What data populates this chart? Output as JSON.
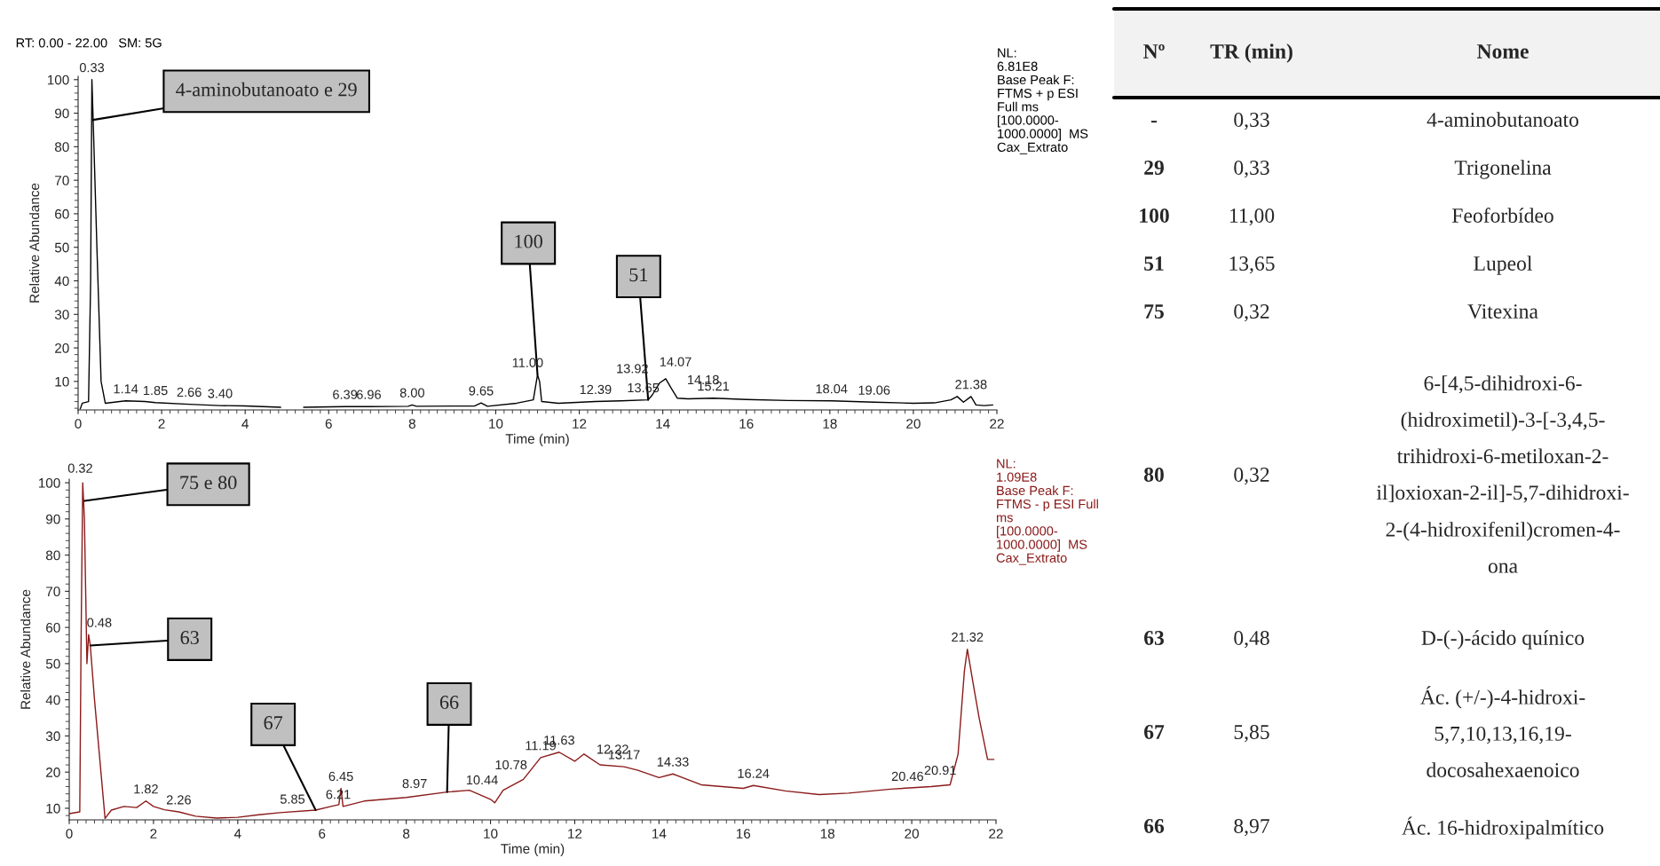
{
  "chart_data": [
    {
      "type": "line",
      "xlabel": "Time (min)",
      "ylabel": "Relative Abundance",
      "xlim": [
        0,
        22
      ],
      "ylim": [
        1.5,
        101
      ],
      "xticks": [
        0,
        2,
        4,
        6,
        8,
        10,
        12,
        14,
        16,
        18,
        20,
        22
      ],
      "yticks": [
        10,
        20,
        30,
        40,
        50,
        60,
        70,
        80,
        90,
        100
      ],
      "series": [
        {
          "color": "#000000",
          "x": [
            0.05,
            0.1,
            0.25,
            0.3,
            0.33,
            0.36,
            0.45,
            0.55,
            0.65,
            1.0,
            1.14,
            1.6,
            1.85,
            2.66,
            3.4,
            4.0,
            4.85,
            5.1,
            5.4,
            6.39,
            6.96,
            7.9,
            8.0,
            8.1,
            9.5,
            9.65,
            9.8,
            10.5,
            10.9,
            11.0,
            11.05,
            11.1,
            11.5,
            12.39,
            13.0,
            13.65,
            13.75,
            13.92,
            14.07,
            14.2,
            14.35,
            14.6,
            15.21,
            16.0,
            17.0,
            18.04,
            19.06,
            20.0,
            20.5,
            20.9,
            21.05,
            21.2,
            21.38,
            21.5,
            21.7,
            21.9
          ],
          "values": [
            1.8,
            3.5,
            4,
            40,
            100,
            88,
            50,
            10,
            3.5,
            4,
            4.2,
            4,
            3.7,
            3.2,
            2.8,
            2.7,
            2.3,
            null,
            2.3,
            2.5,
            2.5,
            2.6,
            3,
            2.6,
            2.7,
            3.6,
            2.6,
            3.5,
            4.5,
            12,
            10,
            4,
            3.5,
            4,
            4.2,
            4.5,
            6,
            9.5,
            10.8,
            8,
            5,
            4.8,
            5,
            4.6,
            4.3,
            4.2,
            3.8,
            3.5,
            3.6,
            4.5,
            5.5,
            3.8,
            5.5,
            3,
            2.8,
            3
          ]
        }
      ],
      "annotations": [
        "RT: 0.00 - 22.00   SM: 5G",
        "NL:\n6.81E8\nBase Peak F:\nFTMS + p ESI\nFull ms\n[100.0000-\n1000.0000]  MS\nCax_Extrato",
        {
          "text": "4-aminobutanoato e 29",
          "x": 0.36,
          "y": 88
        },
        {
          "text": "100",
          "x": 11.0,
          "y": 12
        },
        {
          "text": "51",
          "x": 13.65,
          "y": 4.5
        },
        {
          "text": "0.33",
          "x": 0.33,
          "y": 100
        },
        {
          "text": "1.14",
          "x": 1.14,
          "y": 4.2
        },
        {
          "text": "1.85",
          "x": 1.85,
          "y": 3.7
        },
        {
          "text": "2.66",
          "x": 2.66,
          "y": 3.2
        },
        {
          "text": "3.40",
          "x": 3.4,
          "y": 2.8
        },
        {
          "text": "6.39",
          "x": 6.39,
          "y": 2.5
        },
        {
          "text": "6.96",
          "x": 6.96,
          "y": 2.5
        },
        {
          "text": "8.00",
          "x": 8.0,
          "y": 3
        },
        {
          "text": "9.65",
          "x": 9.65,
          "y": 3.6
        },
        {
          "text": "11.00",
          "x": 11.0,
          "y": 12
        },
        {
          "text": "12.39",
          "x": 12.39,
          "y": 4
        },
        {
          "text": "13.65",
          "x": 13.65,
          "y": 4.5
        },
        {
          "text": "13.92",
          "x": 13.92,
          "y": 9.5
        },
        {
          "text": "14.07",
          "x": 14.07,
          "y": 10.8
        },
        {
          "text": "14.18",
          "x": 14.2,
          "y": 8
        },
        {
          "text": "15.21",
          "x": 15.21,
          "y": 5
        },
        {
          "text": "18.04",
          "x": 18.04,
          "y": 4.2
        },
        {
          "text": "19.06",
          "x": 19.06,
          "y": 3.8
        },
        {
          "text": "21.38",
          "x": 21.38,
          "y": 5.5
        }
      ]
    },
    {
      "type": "line",
      "xlabel": "Time (min)",
      "ylabel": "Relative Abundance",
      "xlim": [
        0,
        22
      ],
      "ylim": [
        6.8,
        101
      ],
      "xticks": [
        0,
        2,
        4,
        6,
        8,
        10,
        12,
        14,
        16,
        18,
        20,
        22
      ],
      "yticks": [
        10,
        20,
        30,
        40,
        50,
        60,
        70,
        80,
        90,
        100
      ],
      "series": [
        {
          "color": "#8b1a1a",
          "x": [
            0,
            0.25,
            0.28,
            0.32,
            0.36,
            0.42,
            0.46,
            0.5,
            0.6,
            0.85,
            1.0,
            1.3,
            1.6,
            1.82,
            2.0,
            2.26,
            2.6,
            3.0,
            3.5,
            4.0,
            4.5,
            5.0,
            5.85,
            6.21,
            6.4,
            6.45,
            6.5,
            7.0,
            7.5,
            8.0,
            8.97,
            9.5,
            10.0,
            10.1,
            10.3,
            10.78,
            11.19,
            11.63,
            12.0,
            12.22,
            12.6,
            13.17,
            13.5,
            14.0,
            14.33,
            15.0,
            16.0,
            16.24,
            17.0,
            17.8,
            18.5,
            19.5,
            20.46,
            20.91,
            21.1,
            21.25,
            21.32,
            21.45,
            21.6,
            21.8,
            21.95
          ],
          "values": [
            8.5,
            9,
            55,
            100,
            90,
            50,
            58,
            55,
            40,
            7.2,
            9.5,
            10.5,
            10.2,
            12,
            10.5,
            9.6,
            9,
            7.8,
            7.3,
            7.5,
            8.2,
            8.8,
            9.5,
            10.5,
            11,
            15.5,
            10.5,
            12,
            12.5,
            13,
            14.5,
            15,
            12.5,
            11.5,
            15,
            18,
            24,
            25.5,
            23,
            25,
            22,
            21.5,
            20.5,
            18.5,
            19.5,
            16.5,
            15.5,
            16.3,
            14.8,
            13.8,
            14.2,
            15.3,
            16,
            16.5,
            25,
            48,
            54,
            45,
            35,
            23.5,
            23.5
          ]
        }
      ],
      "annotations": [
        "NL:\n1.09E8\nBase Peak F:\nFTMS - p ESI Full\nms\n[100.0000-\n1000.0000]  MS\nCax_Extrato",
        {
          "text": "75 e 80",
          "x": 0.36,
          "y": 95
        },
        {
          "text": "63",
          "x": 0.5,
          "y": 55
        },
        {
          "text": "67",
          "x": 5.85,
          "y": 9.5
        },
        {
          "text": "66",
          "x": 8.97,
          "y": 14.5
        },
        {
          "text": "0.32",
          "x": 0.32,
          "y": 100
        },
        {
          "text": "0.48",
          "x": 0.48,
          "y": 58
        },
        {
          "text": "1.82",
          "x": 1.82,
          "y": 12
        },
        {
          "text": "2.26",
          "x": 2.6,
          "y": 9
        },
        {
          "text": "5.85",
          "x": 5.3,
          "y": 9.2
        },
        {
          "text": "6.21",
          "x": 6.21,
          "y": 10.5
        },
        {
          "text": "6.45",
          "x": 6.45,
          "y": 15.5
        },
        {
          "text": "8.97",
          "x": 8.2,
          "y": 13.5
        },
        {
          "text": "10.44",
          "x": 9.8,
          "y": 14.5
        },
        {
          "text": "10.78",
          "x": 10.78,
          "y": 18
        },
        {
          "text": "11.19",
          "x": 11.19,
          "y": 24
        },
        {
          "text": "11.63",
          "x": 11.63,
          "y": 25.5
        },
        {
          "text": "12.22",
          "x": 12.9,
          "y": 23
        },
        {
          "text": "13.17",
          "x": 13.17,
          "y": 21.5
        },
        {
          "text": "14.33",
          "x": 14.33,
          "y": 19.5
        },
        {
          "text": "16.24",
          "x": 16.24,
          "y": 16.3
        },
        {
          "text": "20.46",
          "x": 19.9,
          "y": 15.5
        },
        {
          "text": "20.91",
          "x": 20.91,
          "y": 16.5
        },
        {
          "text": "21.32",
          "x": 21.32,
          "y": 54
        }
      ]
    },
    {
      "type": "other",
      "annotations": [
        "Nº",
        "TR (min)",
        "Nome",
        "-",
        "0,33",
        "4-aminobutanoato",
        "29",
        "0,33",
        "Trigonelina",
        "100",
        "11,00",
        "Feoforbídeo",
        "51",
        "13,65",
        "Lupeol",
        "75",
        "0,32",
        "Vitexina",
        "80",
        "0,32",
        "6-[4,5-dihidroxi-6-\n(hidroximetil)-3-[-3,4,5-\ntrihidroxi-6-metiloxan-2-\nil]oxioxan-2-il]-5,7-dihidroxi-\n2-(4-hidroxifenil)cromen-4-\nona",
        "63",
        "0,48",
        "D-(-)-ácido quínico",
        "67",
        "5,85",
        "Ác. (+/-)-4-hidroxi-\n5,7,10,13,16,19-\ndocosahexaenoico",
        "66",
        "8,97",
        "Ác. 16-hidroxipalmítico"
      ]
    }
  ]
}
